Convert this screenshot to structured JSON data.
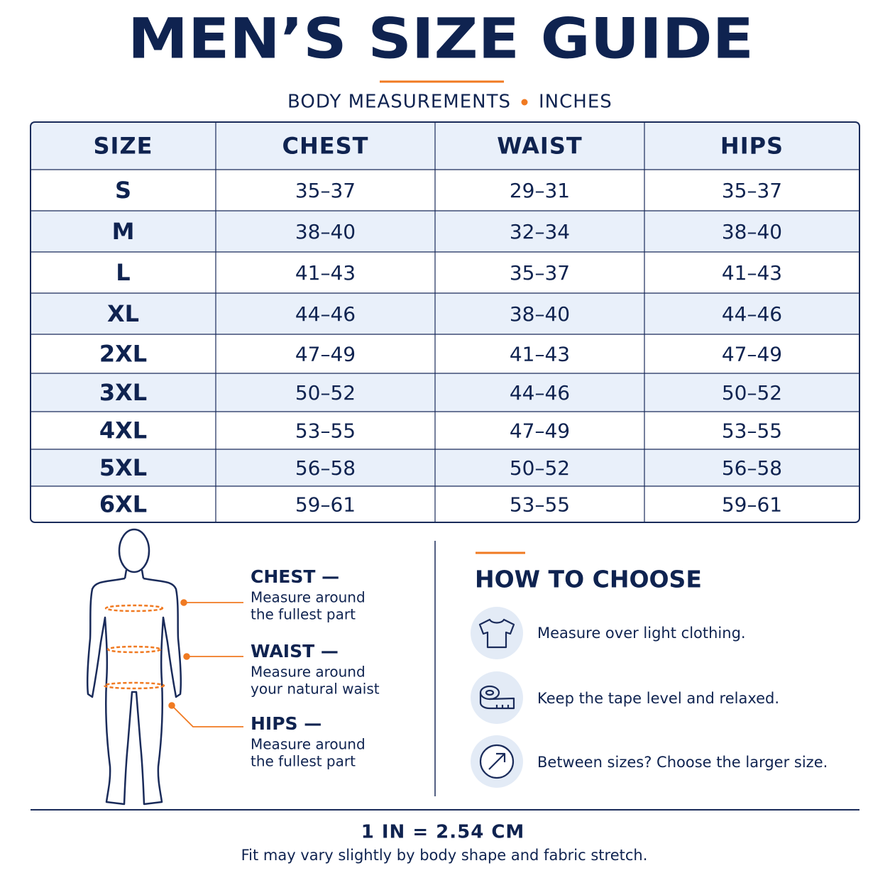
{
  "header": {
    "title": "MEN’S SIZE GUIDE",
    "subtitle": [
      "BODY MEASUREMENTS",
      "INCHES"
    ]
  },
  "table": {
    "columns": [
      "SIZE",
      "CHEST",
      "WAIST",
      "HIPS"
    ],
    "rows": [
      [
        "S",
        "35–37",
        "29–31",
        "35–37"
      ],
      [
        "M",
        "38–40",
        "32–34",
        "38–40"
      ],
      [
        "L",
        "41–43",
        "35–37",
        "41–43"
      ],
      [
        "XL",
        "44–46",
        "38–40",
        "44–46"
      ],
      [
        "2XL",
        "47–49",
        "41–43",
        "47–49"
      ],
      [
        "3XL",
        "50–52",
        "44–46",
        "50–52"
      ],
      [
        "4XL",
        "53–55",
        "47–49",
        "53–55"
      ],
      [
        "5XL",
        "56–58",
        "50–52",
        "56–58"
      ],
      [
        "6XL",
        "59–61",
        "53–55",
        "59–61"
      ]
    ]
  },
  "measure_guide": {
    "items": [
      {
        "label": "CHEST —",
        "lines": [
          "Measure around",
          "the fullest part"
        ]
      },
      {
        "label": "WAIST —",
        "lines": [
          "Measure around",
          "your natural waist"
        ]
      },
      {
        "label": "HIPS —",
        "lines": [
          "Measure around",
          "the fullest part"
        ]
      }
    ]
  },
  "how_to_choose": {
    "title": "HOW TO CHOOSE",
    "tips": [
      "Measure over light clothing.",
      "Keep the tape level and relaxed.",
      "Between sizes? Choose the larger size."
    ]
  },
  "footer": {
    "conversion": "1 IN = 2.54 CM",
    "note": "Fit may vary slightly by body shape and fabric stretch."
  }
}
